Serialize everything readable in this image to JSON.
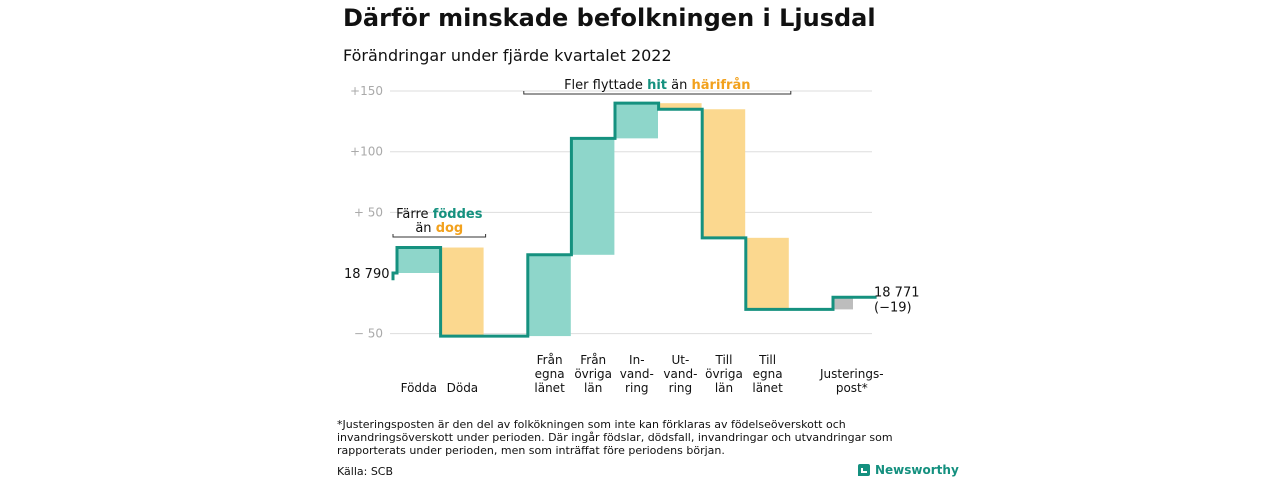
{
  "title": "Därför minskade befolkningen i Ljusdal",
  "subtitle": "Förändringar under fjärde kvartalet 2022",
  "colors": {
    "in": "#8ed6ca",
    "out": "#fbd88f",
    "adj": "#bdbdbd",
    "line": "#15917f",
    "grid": "#dddddd",
    "tick": "#aaaaaa",
    "hl_green": "#15917f",
    "hl_orange": "#f2a11d"
  },
  "chart_data": {
    "type": "waterfall",
    "title": "Därför minskade befolkningen i Ljusdal",
    "subtitle": "Förändringar under fjärde kvartalet 2022",
    "y_ticks": [
      {
        "value": 150,
        "label": "+150"
      },
      {
        "value": 100,
        "label": "+100"
      },
      {
        "value": 50,
        "label": "+ 50"
      },
      {
        "value": -50,
        "label": "− 50"
      }
    ],
    "ylim": [
      -50,
      150
    ],
    "start": {
      "value": 0,
      "label": "18 790"
    },
    "end": {
      "value": -19,
      "label": "18 771",
      "change_label": "(−19)"
    },
    "steps": [
      {
        "label": [
          "Födda"
        ],
        "delta": 21,
        "kind": "in"
      },
      {
        "label": [
          "Döda"
        ],
        "delta": -73,
        "kind": "out"
      },
      {
        "label": [],
        "delta": 0,
        "kind": "gap"
      },
      {
        "label": [
          "Från",
          "egna",
          "länet"
        ],
        "delta": 67,
        "kind": "in"
      },
      {
        "label": [
          "Från",
          "övriga",
          "län"
        ],
        "delta": 96,
        "kind": "in"
      },
      {
        "label": [
          "In-",
          "vand-",
          "ring"
        ],
        "delta": 29,
        "kind": "in"
      },
      {
        "label": [
          "Ut-",
          "vand-",
          "ring"
        ],
        "delta": -5,
        "kind": "out"
      },
      {
        "label": [
          "Till",
          "övriga",
          "län"
        ],
        "delta": -106,
        "kind": "out"
      },
      {
        "label": [
          "Till",
          "egna",
          "länet"
        ],
        "delta": -59,
        "kind": "out"
      },
      {
        "label": [],
        "delta": 0,
        "kind": "gap"
      },
      {
        "label": [
          "Justerings-",
          "post*"
        ],
        "delta": 10,
        "kind": "adj"
      }
    ],
    "annotations": [
      {
        "id": "births",
        "from_step": 0,
        "to_step": 1,
        "line1": [
          {
            "text": "Färre ",
            "hl": ""
          },
          {
            "text": "föddes",
            "hl": "green"
          }
        ],
        "line2": [
          {
            "text": "än ",
            "hl": ""
          },
          {
            "text": "dog",
            "hl": "orange"
          }
        ]
      },
      {
        "id": "migration",
        "from_step": 3,
        "to_step": 8,
        "line1": [
          {
            "text": "Fler flyttade ",
            "hl": ""
          },
          {
            "text": "hit",
            "hl": "green"
          },
          {
            "text": " än ",
            "hl": ""
          },
          {
            "text": "härifrån",
            "hl": "orange"
          }
        ]
      }
    ]
  },
  "footnote": "*Justeringsposten är den del av folkökningen som inte kan förklaras av födelseöverskott och invandringsöverskott under perioden. Där ingår födslar, dödsfall, invandringar och utvandringar som rapporterats under perioden, men som inträffat före periodens början.",
  "source": "Källa: SCB",
  "brand": "Newsworthy"
}
